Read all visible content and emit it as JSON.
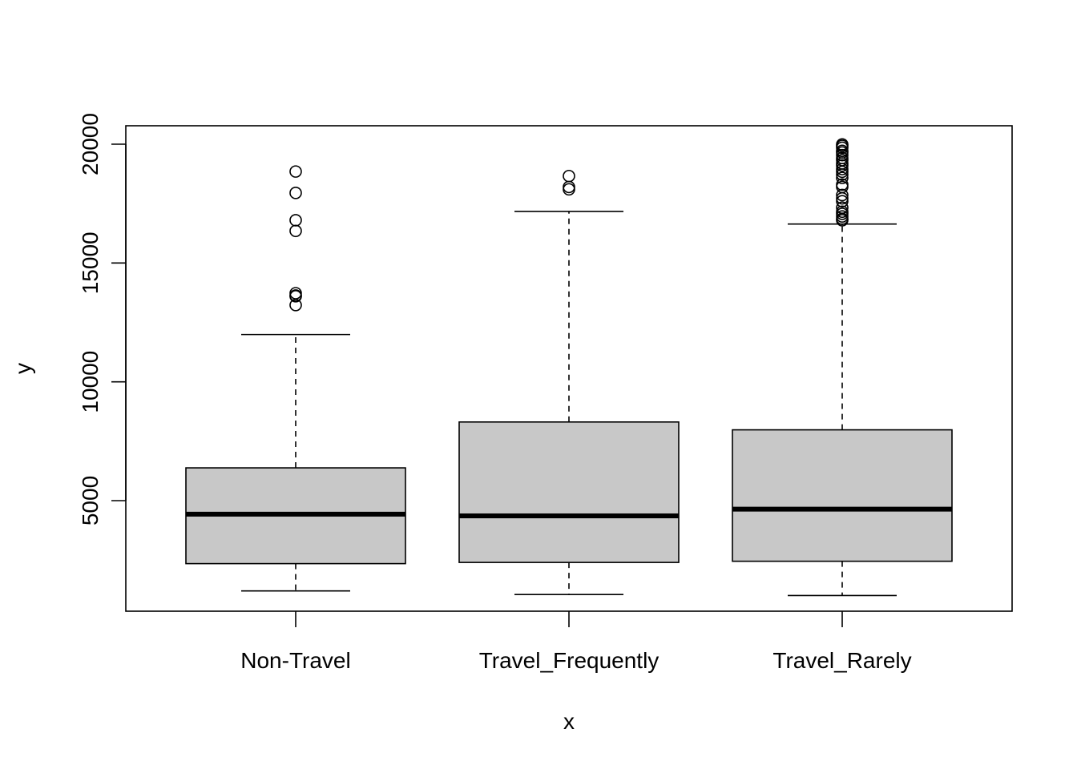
{
  "chart_data": {
    "type": "boxplot",
    "xlabel": "x",
    "ylabel": "y",
    "categories": [
      "Non-Travel",
      "Travel_Frequently",
      "Travel_Rarely"
    ],
    "y_ticks": [
      5000,
      10000,
      15000,
      20000
    ],
    "ylim": [
      1009,
      20000
    ],
    "grid": false,
    "colors": {
      "box_fill": "#c8c8c8",
      "stroke": "#000000"
    },
    "boxes": [
      {
        "category": "Non-Travel",
        "whisker_low": 1200,
        "q1": 2350,
        "median": 4430,
        "q3": 6380,
        "whisker_high": 11990,
        "outliers": [
          18850,
          17950,
          16800,
          16350,
          13730,
          13630,
          13600,
          13230
        ]
      },
      {
        "category": "Travel_Frequently",
        "whisker_low": 1050,
        "q1": 2400,
        "median": 4360,
        "q3": 8310,
        "whisker_high": 17170,
        "outliers": [
          18660,
          18200,
          18100
        ]
      },
      {
        "category": "Travel_Rarely",
        "whisker_low": 1009,
        "q1": 2450,
        "median": 4640,
        "q3": 7980,
        "whisker_high": 16640,
        "outliers": [
          19990,
          19930,
          19850,
          19720,
          19650,
          19540,
          19420,
          19330,
          19190,
          19100,
          18950,
          18840,
          18720,
          18580,
          18300,
          18200,
          17860,
          17720,
          17600,
          17330,
          17160,
          17070,
          16960,
          16860,
          16800
        ]
      }
    ]
  }
}
